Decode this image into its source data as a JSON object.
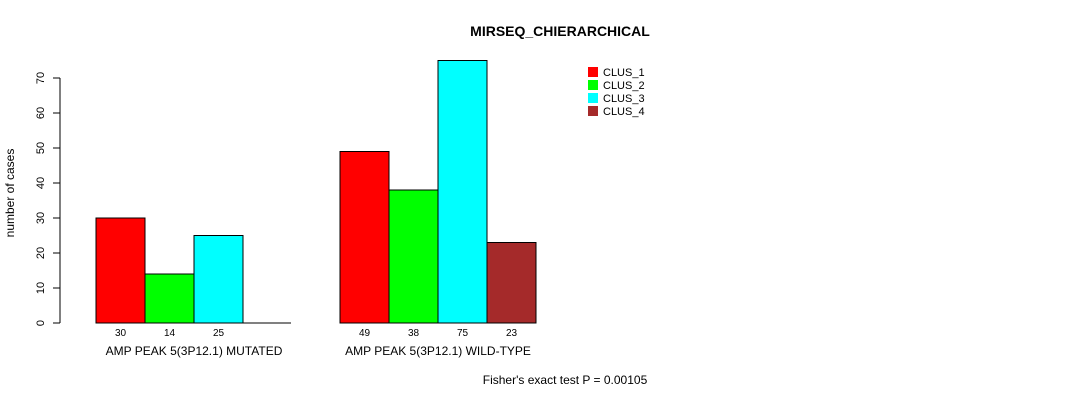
{
  "chart_data": {
    "type": "bar",
    "title": "MIRSEQ_CHIERARCHICAL",
    "ylabel": "number of cases",
    "xlabel": "",
    "ylim": [
      0,
      75
    ],
    "yticks": [
      0,
      10,
      20,
      30,
      40,
      50,
      60,
      70
    ],
    "groups": [
      "AMP PEAK  5(3P12.1) MUTATED",
      "AMP PEAK  5(3P12.1) WILD-TYPE"
    ],
    "series": [
      {
        "name": "CLUS_1",
        "color": "#ff0000",
        "values": [
          30,
          49
        ]
      },
      {
        "name": "CLUS_2",
        "color": "#00ff00",
        "values": [
          14,
          38
        ]
      },
      {
        "name": "CLUS_3",
        "color": "#00ffff",
        "values": [
          25,
          75
        ]
      },
      {
        "name": "CLUS_4",
        "color": "#a52a2a",
        "values": [
          0,
          23
        ]
      }
    ],
    "bar_labels": [
      [
        "30",
        "14",
        "25",
        ""
      ],
      [
        "49",
        "38",
        "75",
        "23"
      ]
    ],
    "legend_position": "top-right",
    "annotation": "Fisher's exact test P = 0.00105"
  }
}
